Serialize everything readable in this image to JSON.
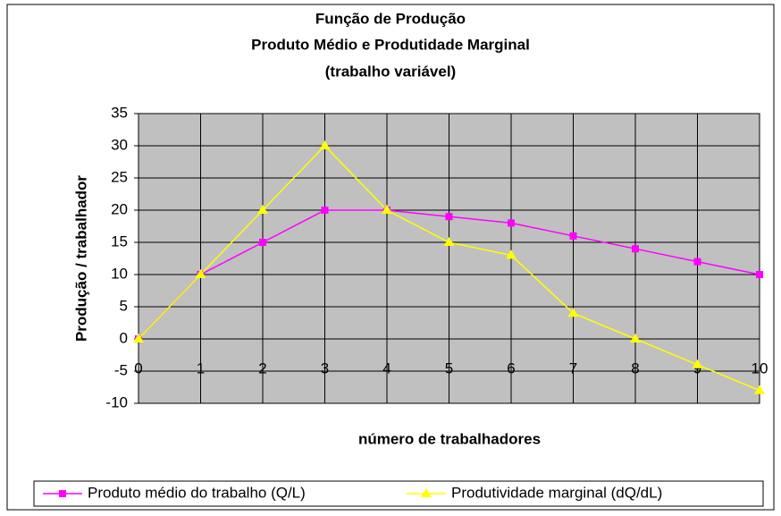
{
  "chart_data": {
    "type": "line",
    "title": [
      "Função de Produção",
      "Produto Médio e Produtidade Marginal",
      "(trabalho variável)"
    ],
    "x_label": "número de trabalhadores",
    "y_label": "Produção / trabalhador",
    "x": [
      0,
      1,
      2,
      3,
      4,
      5,
      6,
      7,
      8,
      9,
      10
    ],
    "xlim": [
      0,
      10
    ],
    "xticks": [
      0,
      1,
      2,
      3,
      4,
      5,
      6,
      7,
      8,
      9,
      10
    ],
    "ylim": [
      -10,
      35
    ],
    "yticks": [
      -10,
      -5,
      0,
      5,
      10,
      15,
      20,
      25,
      30,
      35
    ],
    "grid": true,
    "legend": "bottom",
    "series": [
      {
        "name": "Produto médio do trabalho (Q/L)",
        "color": "#ff00ff",
        "marker": "square",
        "values": [
          0,
          10,
          15,
          20,
          20,
          19,
          18,
          16,
          14,
          12,
          10
        ]
      },
      {
        "name": "Produtividade marginal (dQ/dL)",
        "color": "#ffff00",
        "marker": "triangle",
        "values": [
          0,
          10,
          20,
          30,
          20,
          15,
          13,
          4,
          0,
          -4,
          -8
        ]
      }
    ]
  }
}
